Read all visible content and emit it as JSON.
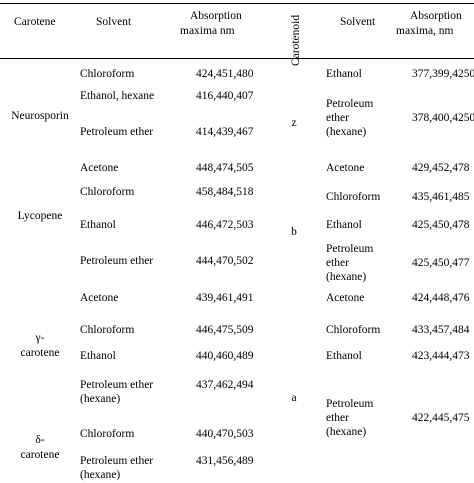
{
  "headers": {
    "carotene": "Carotene",
    "solvent": "Solvent",
    "absorption_line1": "Absorption",
    "absorption_line2": "maxima nm",
    "carotenoid": "Carotenoid",
    "solvent_right": "Solvent",
    "absorption_right_line1": "Absorption",
    "absorption_right_line2": "maxima, nm"
  },
  "left_groups": [
    {
      "name_lines": [
        "Neurosporin"
      ],
      "rows": [
        {
          "solvent": [
            "Chloroform"
          ],
          "maxima": "424,451,480"
        },
        {
          "solvent": [
            "Ethanol, hexane"
          ],
          "maxima": "416,440,407"
        },
        {
          "solvent": [
            "Petroleum ether"
          ],
          "maxima": "414,439,467"
        }
      ]
    },
    {
      "name_lines": [
        "Lycopene"
      ],
      "rows": [
        {
          "solvent": [
            "Acetone"
          ],
          "maxima": "448,474,505"
        },
        {
          "solvent": [
            "Chloroform"
          ],
          "maxima": "458,484,518"
        },
        {
          "solvent": [
            "Ethanol"
          ],
          "maxima": "446,472,503"
        },
        {
          "solvent": [
            "Petroleum ether"
          ],
          "maxima": "444,470,502"
        }
      ]
    },
    {
      "name_lines": [
        "γ-",
        "carotene"
      ],
      "rows": [
        {
          "solvent": [
            "Acetone"
          ],
          "maxima": "439,461,491"
        },
        {
          "solvent": [
            "Chloroform"
          ],
          "maxima": "446,475,509"
        },
        {
          "solvent": [
            "Ethanol"
          ],
          "maxima": "440,460,489"
        },
        {
          "solvent": [
            "Petroleum ether",
            "(hexane)"
          ],
          "maxima": "437,462,494"
        }
      ]
    },
    {
      "name_lines": [
        "δ-",
        "carotene"
      ],
      "rows": [
        {
          "solvent": [
            "Chloroform"
          ],
          "maxima": "440,470,503"
        },
        {
          "solvent": [
            "Petroleum ether",
            "(hexane)"
          ],
          "maxima": "431,456,489"
        }
      ]
    }
  ],
  "right_groups": [
    {
      "name_lines": [
        "z"
      ],
      "rows": [
        {
          "solvent": [
            "Ethanol"
          ],
          "maxima": "377,399,4250"
        },
        {
          "solvent": [
            "Petroleum",
            "ether",
            "(hexane)"
          ],
          "maxima": "378,400,4250"
        }
      ]
    },
    {
      "name_lines": [
        "b"
      ],
      "rows": [
        {
          "solvent": [
            "Acetone"
          ],
          "maxima": "429,452,478"
        },
        {
          "solvent": [
            "Chloroform"
          ],
          "maxima": "435,461,485"
        },
        {
          "solvent": [
            "Ethanol"
          ],
          "maxima": "425,450,478"
        },
        {
          "solvent": [
            "Petroleum",
            "ether",
            "(hexane)"
          ],
          "maxima": "425,450,477"
        }
      ]
    },
    {
      "name_lines": [
        "a"
      ],
      "rows": [
        {
          "solvent": [
            "Acetone"
          ],
          "maxima": "424,448,476"
        },
        {
          "solvent": [
            "Chloroform"
          ],
          "maxima": "433,457,484"
        },
        {
          "solvent": [
            "Ethanol"
          ],
          "maxima": "423,444,473"
        },
        {
          "solvent": [
            "Petroleum",
            "ether",
            "(hexane)"
          ],
          "maxima": "422,445,475"
        }
      ]
    }
  ]
}
